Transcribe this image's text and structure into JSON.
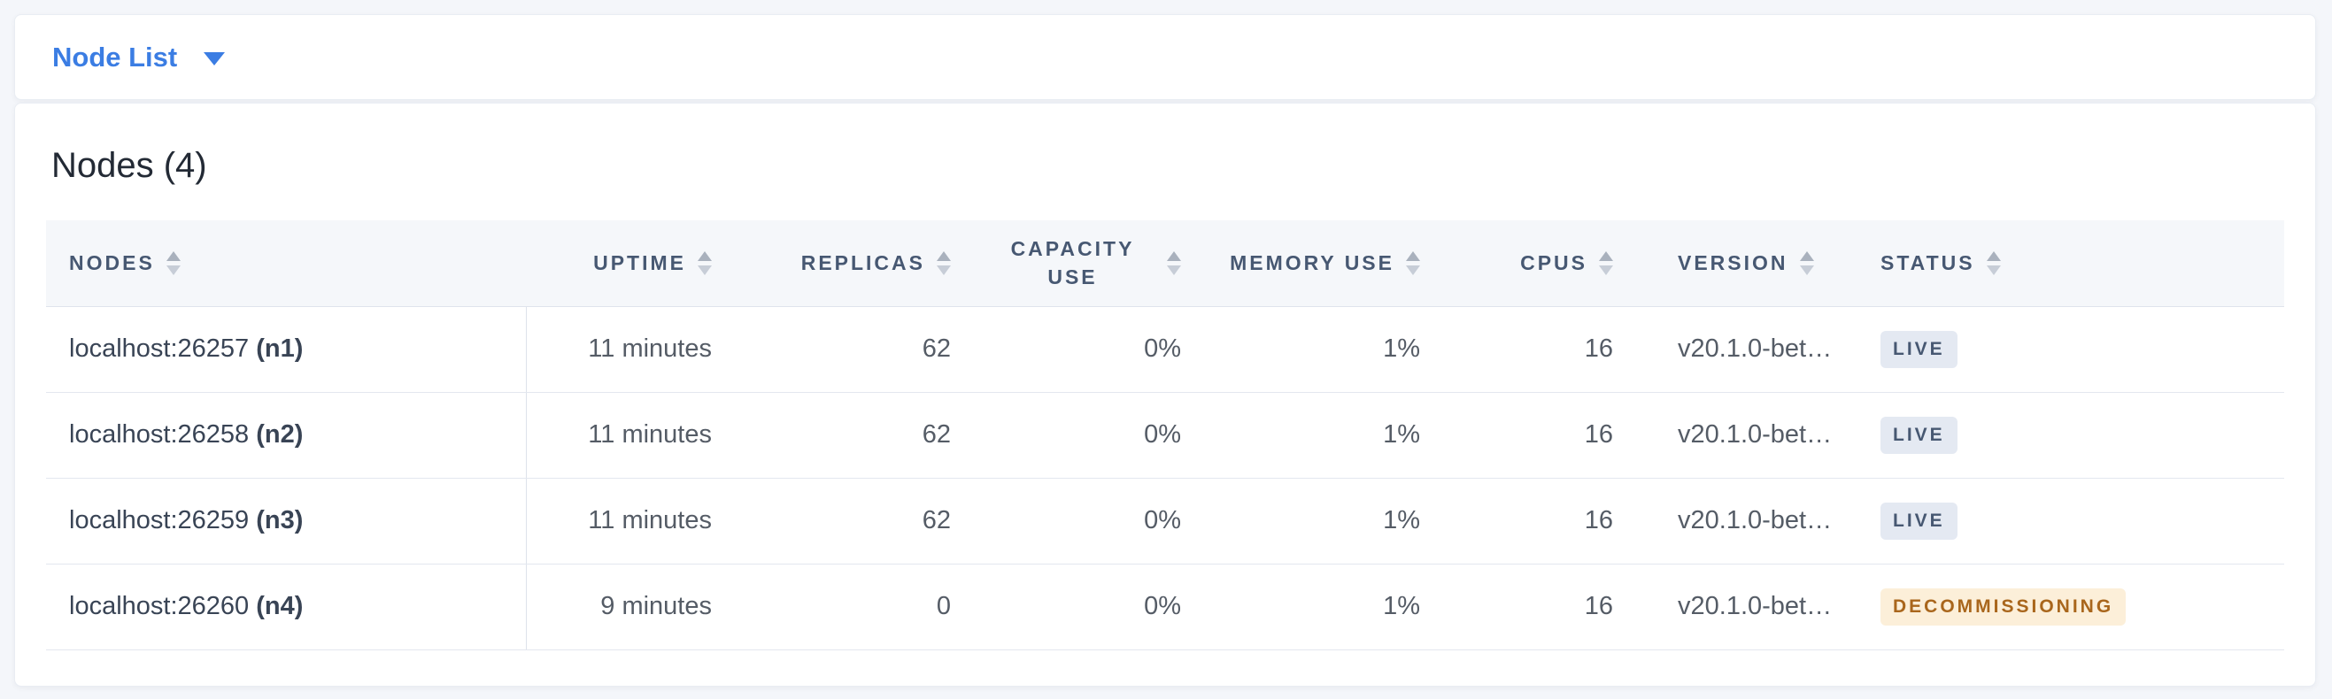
{
  "selector": {
    "label": "Node List"
  },
  "heading": {
    "title": "Nodes (4)"
  },
  "table": {
    "columns": [
      {
        "key": "node",
        "label": "NODES",
        "align": "left"
      },
      {
        "key": "uptime",
        "label": "UPTIME",
        "align": "right"
      },
      {
        "key": "replicas",
        "label": "REPLICAS",
        "align": "right"
      },
      {
        "key": "capacity",
        "label": "CAPACITY USE",
        "align": "right"
      },
      {
        "key": "memory",
        "label": "MEMORY USE",
        "align": "right"
      },
      {
        "key": "cpus",
        "label": "CPUS",
        "align": "right"
      },
      {
        "key": "version",
        "label": "VERSION",
        "align": "left"
      },
      {
        "key": "status",
        "label": "STATUS",
        "align": "left"
      }
    ],
    "rows": [
      {
        "node_address": "localhost:26257",
        "node_id": "(n1)",
        "uptime": "11 minutes",
        "replicas": "62",
        "capacity": "0%",
        "memory": "1%",
        "cpus": "16",
        "version": "v20.1.0-bet…",
        "status": "LIVE",
        "status_type": "live"
      },
      {
        "node_address": "localhost:26258",
        "node_id": "(n2)",
        "uptime": "11 minutes",
        "replicas": "62",
        "capacity": "0%",
        "memory": "1%",
        "cpus": "16",
        "version": "v20.1.0-bet…",
        "status": "LIVE",
        "status_type": "live"
      },
      {
        "node_address": "localhost:26259",
        "node_id": "(n3)",
        "uptime": "11 minutes",
        "replicas": "62",
        "capacity": "0%",
        "memory": "1%",
        "cpus": "16",
        "version": "v20.1.0-bet…",
        "status": "LIVE",
        "status_type": "live"
      },
      {
        "node_address": "localhost:26260",
        "node_id": "(n4)",
        "uptime": "9 minutes",
        "replicas": "0",
        "capacity": "0%",
        "memory": "1%",
        "cpus": "16",
        "version": "v20.1.0-bet…",
        "status": "DECOMMISSIONING",
        "status_type": "decommissioning"
      }
    ]
  },
  "colors": {
    "page_bg": "#f4f6fa",
    "accent_blue": "#3b7de3",
    "live_badge_bg": "#e4e9f2",
    "live_badge_text": "#475872",
    "decommissioning_badge_bg": "#fcefd9",
    "decommissioning_badge_text": "#a9661c"
  }
}
